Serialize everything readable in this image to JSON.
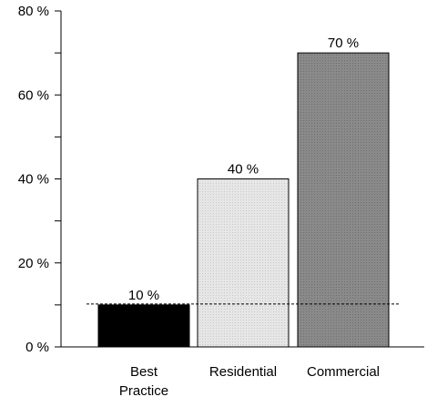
{
  "chart_data": {
    "type": "bar",
    "categories": [
      "Best\nPractice",
      "Residential",
      "Commercial"
    ],
    "values": [
      10,
      40,
      70
    ],
    "value_labels": [
      "10 %",
      "40 %",
      "70 %"
    ],
    "bar_colors": [
      "#000000",
      "#dcdcdc",
      "#808080"
    ],
    "ylim": [
      0,
      80
    ],
    "y_ticks": [
      0,
      20,
      40,
      60,
      80
    ],
    "y_tick_labels": [
      "0 %",
      "20 %",
      "40 %",
      "60 %",
      "80 %"
    ],
    "y_minor_ticks": [
      10,
      30,
      50,
      70
    ],
    "reference_line": {
      "value": 10,
      "style": "dashed"
    },
    "grid": false,
    "legend": "none",
    "title": "",
    "xlabel": "",
    "ylabel": ""
  }
}
